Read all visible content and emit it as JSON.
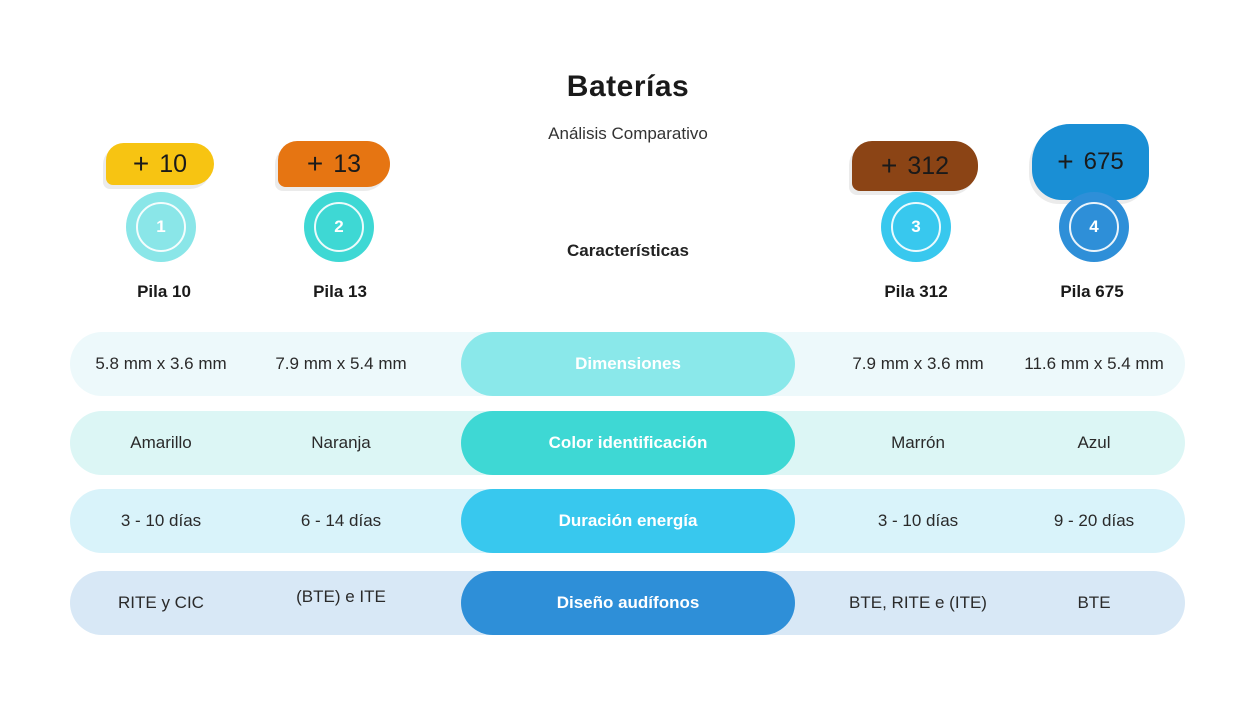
{
  "header": {
    "title": "Baterías",
    "subtitle": "Análisis  Comparativo",
    "section": "Características"
  },
  "colors": {
    "pila10": "#f7c412",
    "pila13": "#e67512",
    "pila312": "#8b4415",
    "pila675": "#1a8fd5"
  },
  "batteries": [
    {
      "tab_plus": "+",
      "tab_number": "10",
      "badge": "1",
      "label": "Pila 10"
    },
    {
      "tab_plus": "+",
      "tab_number": "13",
      "badge": "2",
      "label": "Pila 13"
    },
    {
      "tab_plus": "+",
      "tab_number": "312",
      "badge": "3",
      "label": "Pila  312"
    },
    {
      "tab_plus": "+",
      "tab_number": "675",
      "badge": "4",
      "label": "Pila 675"
    }
  ],
  "rows": [
    {
      "feature": "Dimensiones",
      "values": [
        "5.8 mm x 3.6 mm",
        "7.9 mm x 5.4 mm",
        "7.9 mm x 3.6 mm",
        "11.6 mm x 5.4 mm"
      ]
    },
    {
      "feature": "Color identificación",
      "values": [
        "Amarillo",
        "Naranja",
        "Marrón",
        "Azul"
      ]
    },
    {
      "feature": "Duración energía",
      "values": [
        "3 - 10 días",
        "6 - 14 días",
        "3 - 10 días",
        "9 - 20 días"
      ]
    },
    {
      "feature": "Diseño audífonos",
      "values": [
        "RITE y CIC",
        "(BTE) e ITE",
        "BTE, RITE e (ITE)",
        "BTE"
      ]
    }
  ]
}
